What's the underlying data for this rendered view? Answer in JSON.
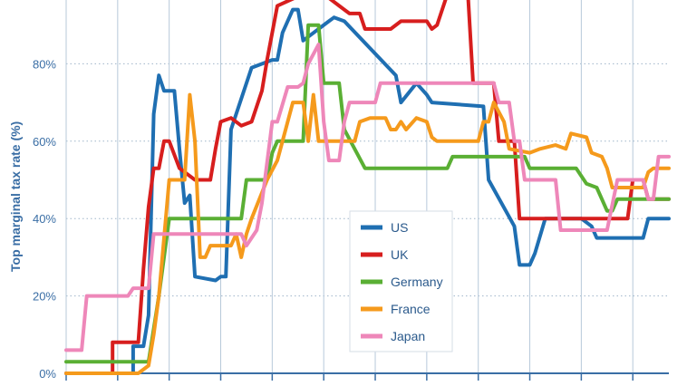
{
  "chart_data": {
    "type": "line",
    "ylabel": "Top marginal tax rate (%)",
    "xlabel": "",
    "ylim": [
      0,
      100
    ],
    "xlim": [
      1900,
      2017
    ],
    "y_ticks": [
      {
        "value": 0,
        "label": "0%"
      },
      {
        "value": 20,
        "label": "20%"
      },
      {
        "value": 40,
        "label": "40%"
      },
      {
        "value": 60,
        "label": "60%"
      },
      {
        "value": 80,
        "label": "80%"
      }
    ],
    "x_gridlines": [
      1900,
      1910,
      1920,
      1930,
      1940,
      1950,
      1960,
      1970,
      1980,
      1990,
      2000,
      2010
    ],
    "grid": {
      "y": "dotted",
      "x": "solid"
    },
    "legend_position": "bottom-center",
    "series": [
      {
        "name": "US",
        "color": "#1f6fb2",
        "points": [
          [
            1900,
            0
          ],
          [
            1913,
            0
          ],
          [
            1913,
            7
          ],
          [
            1915,
            7
          ],
          [
            1916,
            15
          ],
          [
            1917,
            67
          ],
          [
            1918,
            77
          ],
          [
            1919,
            73
          ],
          [
            1921,
            73
          ],
          [
            1922,
            58
          ],
          [
            1923,
            44
          ],
          [
            1924,
            46
          ],
          [
            1925,
            25
          ],
          [
            1929,
            24
          ],
          [
            1930,
            25
          ],
          [
            1931,
            25
          ],
          [
            1932,
            63
          ],
          [
            1936,
            79
          ],
          [
            1940,
            81
          ],
          [
            1941,
            81
          ],
          [
            1942,
            88
          ],
          [
            1944,
            94
          ],
          [
            1945,
            94
          ],
          [
            1946,
            86
          ],
          [
            1951,
            91
          ],
          [
            1952,
            92
          ],
          [
            1954,
            91
          ],
          [
            1964,
            77
          ],
          [
            1965,
            70
          ],
          [
            1968,
            75
          ],
          [
            1970,
            72
          ],
          [
            1971,
            70
          ],
          [
            1981,
            69
          ],
          [
            1982,
            50
          ],
          [
            1987,
            38
          ],
          [
            1988,
            28
          ],
          [
            1990,
            28
          ],
          [
            1991,
            31
          ],
          [
            1993,
            40
          ],
          [
            2000,
            40
          ],
          [
            2002,
            38
          ],
          [
            2003,
            35
          ],
          [
            2012,
            35
          ],
          [
            2013,
            40
          ],
          [
            2017,
            40
          ]
        ]
      },
      {
        "name": "UK",
        "color": "#d71e1e",
        "points": [
          [
            1900,
            0
          ],
          [
            1909,
            0
          ],
          [
            1909,
            8
          ],
          [
            1914,
            8
          ],
          [
            1915,
            27
          ],
          [
            1916,
            43
          ],
          [
            1917,
            53
          ],
          [
            1918,
            53
          ],
          [
            1919,
            60
          ],
          [
            1920,
            60
          ],
          [
            1922,
            53
          ],
          [
            1925,
            50
          ],
          [
            1928,
            50
          ],
          [
            1929,
            58
          ],
          [
            1930,
            65
          ],
          [
            1932,
            66
          ],
          [
            1934,
            64
          ],
          [
            1936,
            65
          ],
          [
            1938,
            73
          ],
          [
            1939,
            81
          ],
          [
            1941,
            95
          ],
          [
            1946,
            98
          ],
          [
            1951,
            97
          ],
          [
            1953,
            95
          ],
          [
            1955,
            93
          ],
          [
            1957,
            93
          ],
          [
            1958,
            89
          ],
          [
            1963,
            89
          ],
          [
            1965,
            91
          ],
          [
            1970,
            91
          ],
          [
            1971,
            89
          ],
          [
            1972,
            90
          ],
          [
            1974,
            98
          ],
          [
            1978,
            98
          ],
          [
            1979,
            75
          ],
          [
            1983,
            75
          ],
          [
            1984,
            60
          ],
          [
            1987,
            60
          ],
          [
            1988,
            40
          ],
          [
            2009,
            40
          ],
          [
            2010,
            50
          ],
          [
            2012,
            50
          ],
          [
            2013,
            45
          ],
          [
            2017,
            45
          ]
        ]
      },
      {
        "name": "Germany",
        "color": "#5aaf34",
        "points": [
          [
            1900,
            3
          ],
          [
            1916,
            3
          ],
          [
            1918,
            20
          ],
          [
            1920,
            40
          ],
          [
            1934,
            40
          ],
          [
            1935,
            50
          ],
          [
            1939,
            50
          ],
          [
            1940,
            57
          ],
          [
            1941,
            60
          ],
          [
            1946,
            60
          ],
          [
            1947,
            90
          ],
          [
            1949,
            90
          ],
          [
            1950,
            75
          ],
          [
            1953,
            75
          ],
          [
            1954,
            63
          ],
          [
            1958,
            53
          ],
          [
            1974,
            53
          ],
          [
            1975,
            56
          ],
          [
            1989,
            56
          ],
          [
            1990,
            53
          ],
          [
            1999,
            53
          ],
          [
            2000,
            51
          ],
          [
            2001,
            49
          ],
          [
            2003,
            48
          ],
          [
            2004,
            45
          ],
          [
            2005,
            42
          ],
          [
            2006,
            42
          ],
          [
            2007,
            45
          ],
          [
            2017,
            45
          ]
        ]
      },
      {
        "name": "France",
        "color": "#f59a1c",
        "points": [
          [
            1900,
            0
          ],
          [
            1914,
            0
          ],
          [
            1916,
            2
          ],
          [
            1917,
            10
          ],
          [
            1918,
            20
          ],
          [
            1920,
            50
          ],
          [
            1923,
            50
          ],
          [
            1924,
            72
          ],
          [
            1925,
            60
          ],
          [
            1926,
            30
          ],
          [
            1927,
            30
          ],
          [
            1928,
            33
          ],
          [
            1932,
            33
          ],
          [
            1933,
            36
          ],
          [
            1934,
            30
          ],
          [
            1935,
            36
          ],
          [
            1936,
            40
          ],
          [
            1939,
            50
          ],
          [
            1941,
            55
          ],
          [
            1942,
            60
          ],
          [
            1944,
            70
          ],
          [
            1946,
            70
          ],
          [
            1947,
            60
          ],
          [
            1948,
            72
          ],
          [
            1949,
            60
          ],
          [
            1956,
            60
          ],
          [
            1957,
            65
          ],
          [
            1959,
            66
          ],
          [
            1962,
            66
          ],
          [
            1963,
            63
          ],
          [
            1964,
            63
          ],
          [
            1965,
            65
          ],
          [
            1966,
            63
          ],
          [
            1968,
            66
          ],
          [
            1970,
            65
          ],
          [
            1971,
            61
          ],
          [
            1972,
            60
          ],
          [
            1980,
            60
          ],
          [
            1981,
            65
          ],
          [
            1982,
            65
          ],
          [
            1983,
            70
          ],
          [
            1985,
            65
          ],
          [
            1986,
            58
          ],
          [
            1990,
            57
          ],
          [
            1992,
            58
          ],
          [
            1995,
            59
          ],
          [
            1997,
            58
          ],
          [
            1998,
            62
          ],
          [
            2001,
            61
          ],
          [
            2002,
            57
          ],
          [
            2004,
            56
          ],
          [
            2005,
            53
          ],
          [
            2006,
            48
          ],
          [
            2012,
            48
          ],
          [
            2013,
            52
          ],
          [
            2014,
            53
          ],
          [
            2017,
            53
          ]
        ]
      },
      {
        "name": "Japan",
        "color": "#ee87b9",
        "points": [
          [
            1900,
            6
          ],
          [
            1903,
            6
          ],
          [
            1904,
            20
          ],
          [
            1912,
            20
          ],
          [
            1913,
            22
          ],
          [
            1916,
            22
          ],
          [
            1917,
            36
          ],
          [
            1934,
            36
          ],
          [
            1935,
            33
          ],
          [
            1937,
            37
          ],
          [
            1938,
            44
          ],
          [
            1940,
            65
          ],
          [
            1941,
            65
          ],
          [
            1943,
            74
          ],
          [
            1945,
            74
          ],
          [
            1946,
            75
          ],
          [
            1947,
            80
          ],
          [
            1949,
            85
          ],
          [
            1950,
            65
          ],
          [
            1951,
            55
          ],
          [
            1953,
            55
          ],
          [
            1954,
            65
          ],
          [
            1955,
            70
          ],
          [
            1957,
            70
          ],
          [
            1960,
            70
          ],
          [
            1961,
            75
          ],
          [
            1983,
            75
          ],
          [
            1984,
            70
          ],
          [
            1986,
            70
          ],
          [
            1987,
            60
          ],
          [
            1988,
            60
          ],
          [
            1989,
            50
          ],
          [
            1995,
            50
          ],
          [
            1996,
            37
          ],
          [
            2004,
            37
          ],
          [
            2005,
            37
          ],
          [
            2007,
            50
          ],
          [
            2012,
            50
          ],
          [
            2013,
            45
          ],
          [
            2014,
            45
          ],
          [
            2015,
            56
          ],
          [
            2017,
            56
          ]
        ]
      }
    ]
  }
}
